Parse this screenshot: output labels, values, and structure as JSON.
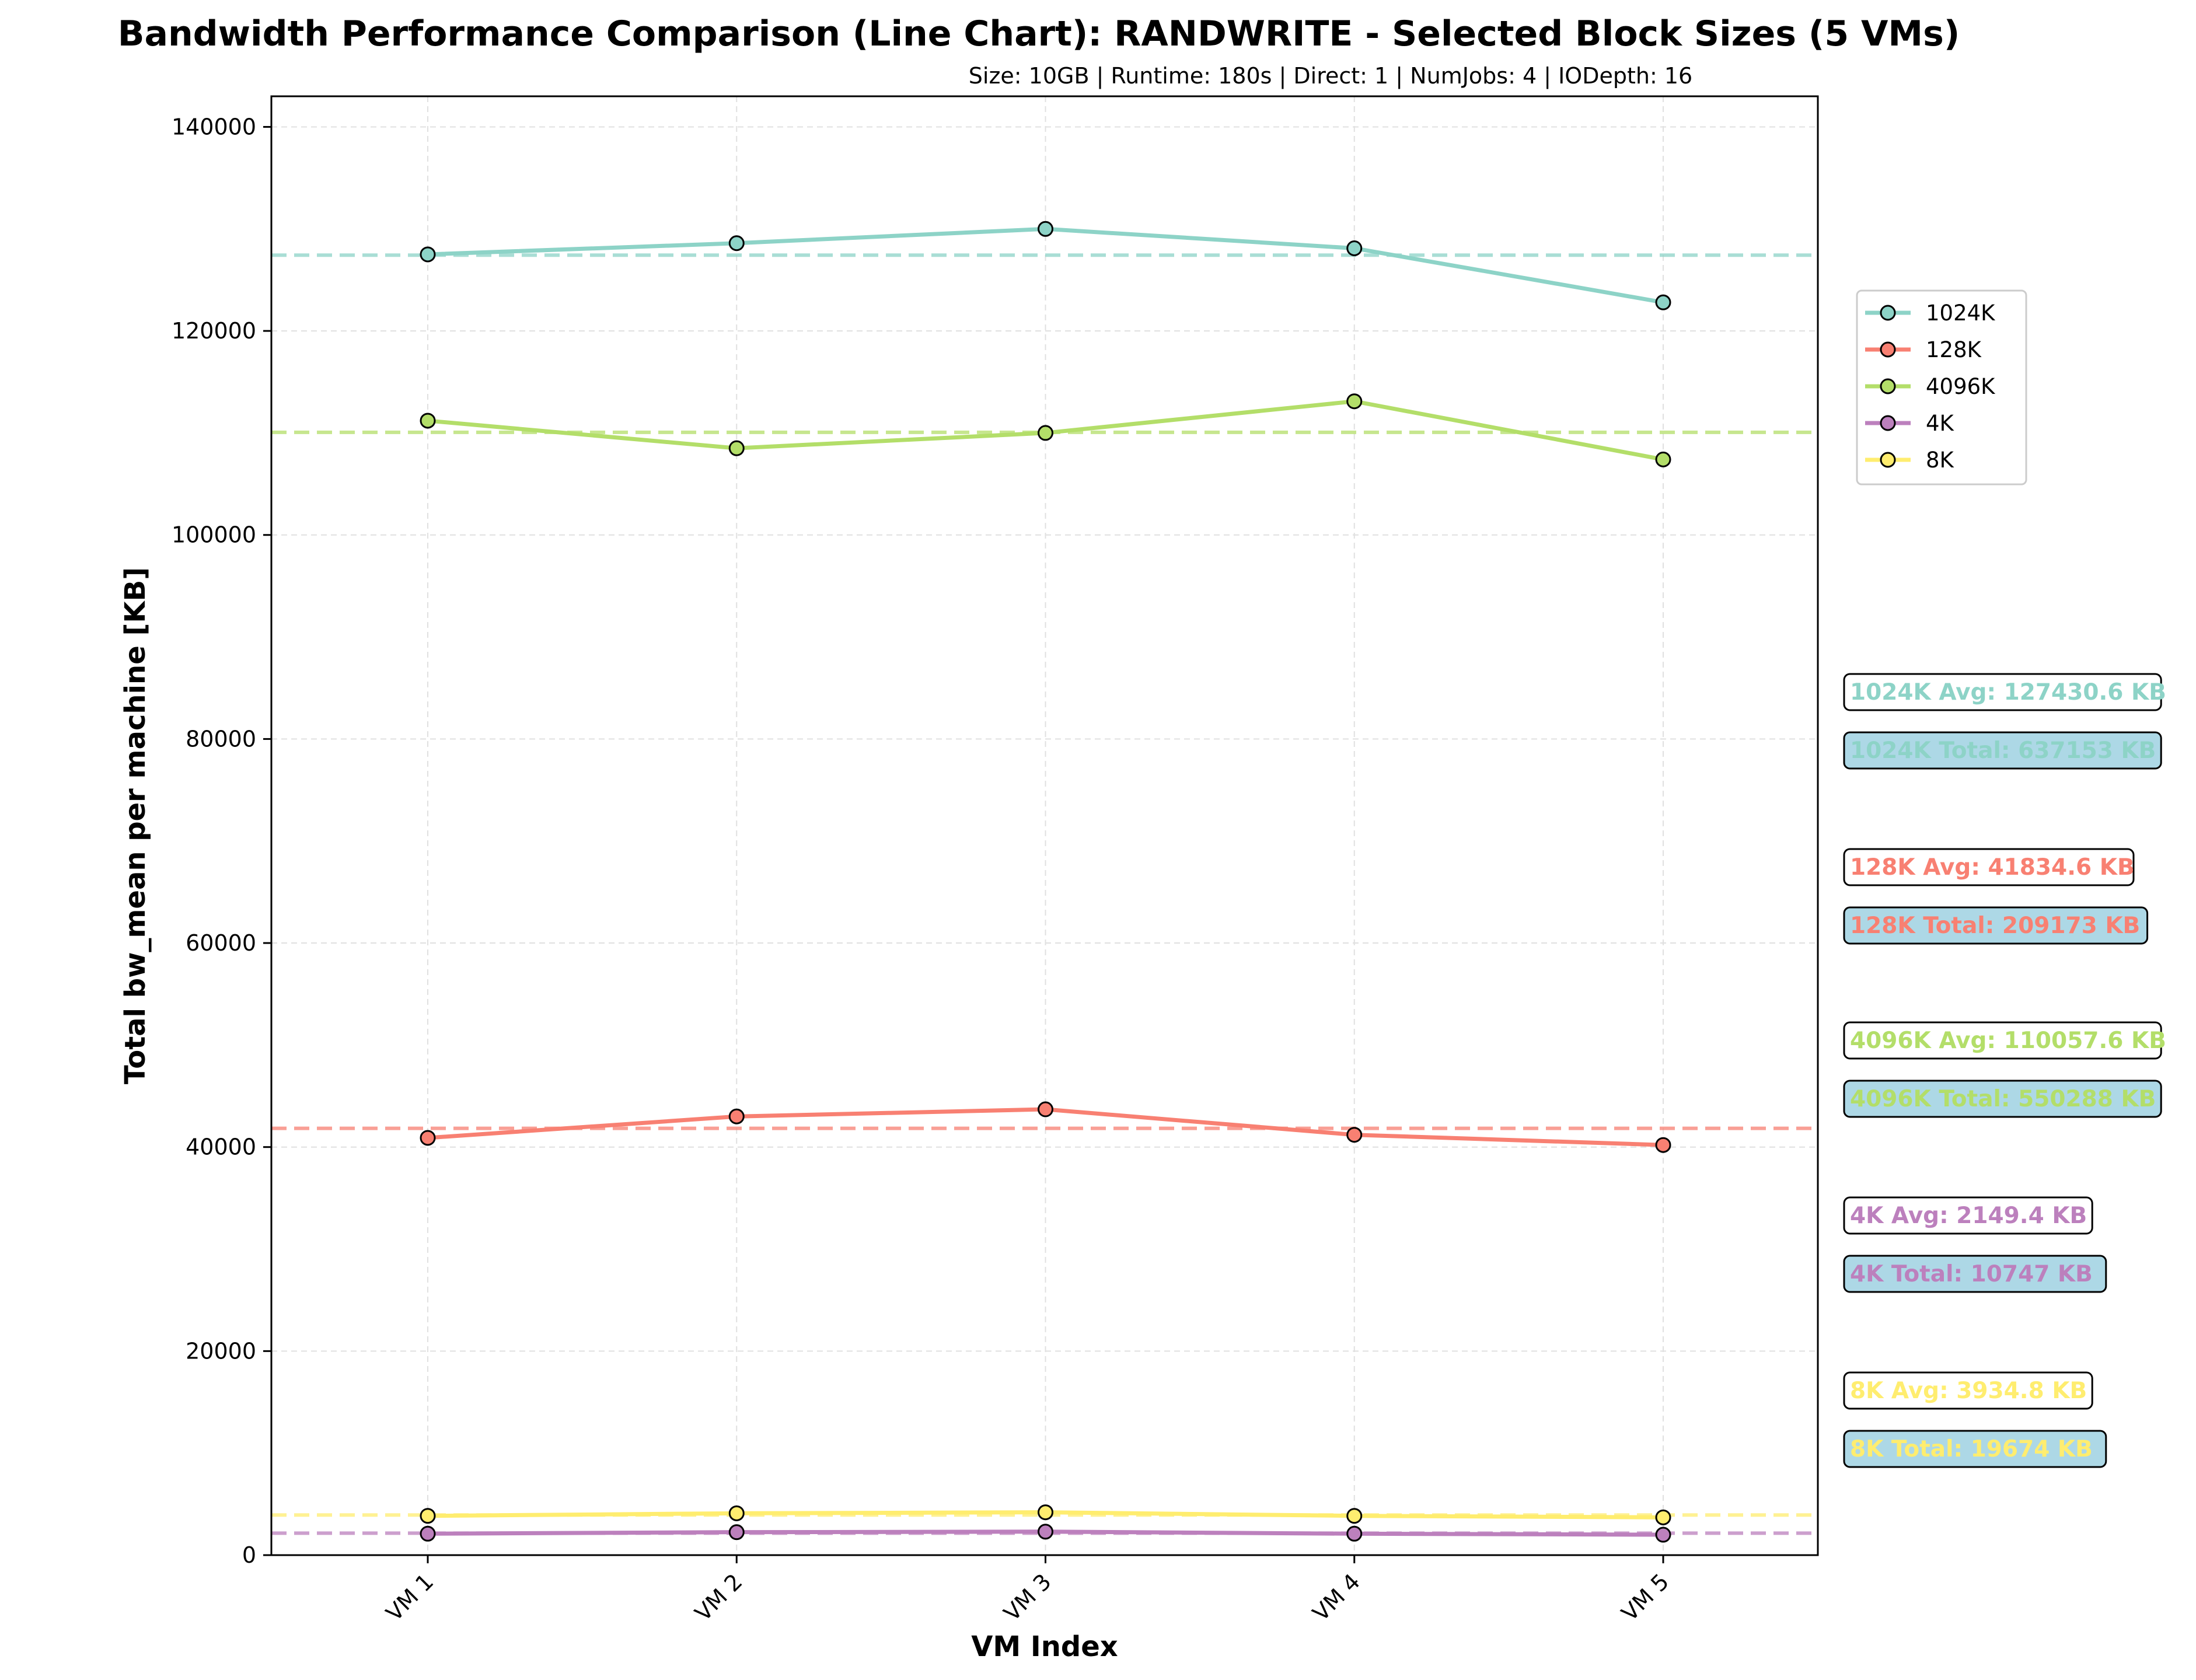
{
  "chart_data": {
    "type": "line",
    "title": "Bandwidth Performance Comparison (Line Chart): RANDWRITE - Selected Block Sizes (5 VMs)",
    "subtitle": "Size: 10GB | Runtime: 180s | Direct: 1 | NumJobs: 4 | IODepth: 16",
    "xlabel": "VM Index",
    "ylabel": "Total bw_mean per machine [KB]",
    "categories": [
      "VM 1",
      "VM 2",
      "VM 3",
      "VM 4",
      "VM 5"
    ],
    "ylim": [
      0,
      143000
    ],
    "yticks": [
      0,
      20000,
      40000,
      60000,
      80000,
      100000,
      120000,
      140000
    ],
    "grid": true,
    "legend_position": "upper right, outside plot",
    "series": [
      {
        "name": "1024K",
        "color": "#8dd3c7",
        "values": [
          127500,
          128600,
          130000,
          128100,
          122800
        ],
        "avg_value": 127430.6,
        "avg_label": "1024K Avg: 127430.6 KB",
        "total_label": "1024K Total: 637153 KB"
      },
      {
        "name": "128K",
        "color": "#f88072",
        "values": [
          40900,
          43000,
          43700,
          41200,
          40200
        ],
        "avg_value": 41834.6,
        "avg_label": "128K Avg: 41834.6 KB",
        "total_label": "128K Total: 209173 KB"
      },
      {
        "name": "4096K",
        "color": "#b3de69",
        "values": [
          111200,
          108500,
          110000,
          113100,
          107400
        ],
        "avg_value": 110057.6,
        "avg_label": "4096K Avg: 110057.6 KB",
        "total_label": "4096K Total: 550288 KB"
      },
      {
        "name": "4K",
        "color": "#bc80bd",
        "values": [
          2100,
          2250,
          2300,
          2100,
          2000
        ],
        "avg_value": 2149.4,
        "avg_label": "4K Avg: 2149.4 KB",
        "total_label": "4K Total: 10747 KB"
      },
      {
        "name": "8K",
        "color": "#ffed6f",
        "values": [
          3850,
          4100,
          4200,
          3850,
          3700
        ],
        "avg_value": 3934.8,
        "avg_label": "8K Avg: 3934.8 KB",
        "total_label": "8K Total: 19674 KB"
      }
    ]
  }
}
